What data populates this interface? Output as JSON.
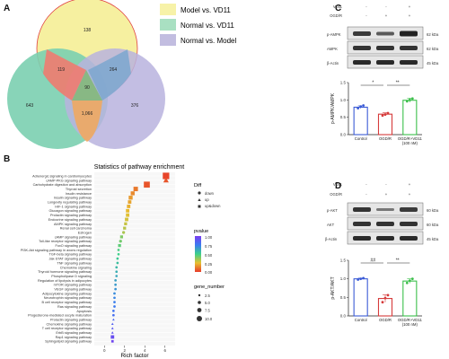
{
  "panels": {
    "a": "A",
    "b": "B",
    "c": "C",
    "d": "D"
  },
  "venn": {
    "legend": [
      {
        "label": "Model vs. VD11",
        "color": "#f7f2a8"
      },
      {
        "label": "Normal vs. VD11",
        "color": "#a9e0c2"
      },
      {
        "label": "Normal vs. Model",
        "color": "#c2bde0"
      }
    ],
    "colors": {
      "model_vd11": "#f6f0a0",
      "normal_vd11": "#7bcfb0",
      "normal_model": "#b8b3de",
      "overlap_ab": "#ef7b70",
      "overlap_ac": "#7fa7cf",
      "overlap_bc": "#f0a860",
      "center": "#88b884"
    },
    "counts": {
      "model_vd11_only": "138",
      "normal_vd11_only": "643",
      "normal_model_only": "376",
      "ab": "119",
      "ac": "264",
      "bc": "1,066",
      "abc": "90"
    }
  },
  "enrichment": {
    "title": "Statistics of pathway enrichment",
    "xlabel": "Rich factor",
    "x_ticks": [
      "0",
      "2",
      "4",
      "6"
    ],
    "pathways": [
      "Adrenergic signaling in cardiomyocytes",
      "cAMP-PKG signaling pathway",
      "Carbohydrate digestion and absorption",
      "Thyroid secretion",
      "Insulin resistance",
      "Insulin signaling pathway",
      "Longevity regulating pathway",
      "HIF-1 signaling pathway",
      "Glucagon signaling pathway",
      "Prolactin signaling pathway",
      "Endocrine signaling pathway",
      "AMPK signaling pathway",
      "Renal cell carcinoma",
      "Estrogen",
      "cAMP signaling pathway",
      "Toll-like receptor signaling pathway",
      "FoxO signaling pathway",
      "PI3K-Akt signaling pathway in axons regulation",
      "TGF-beta signaling pathway",
      "Jak-STAT signaling pathway",
      "TNF signaling pathway",
      "Chemokine signaling",
      "Thyroid hormone signaling pathway",
      "Phospholipase D signaling",
      "Regulation of lipolysis in adipocytes",
      "mTOR signaling pathway",
      "VEGF signaling pathway",
      "Adipocytokine signaling pathway",
      "Neurotrophin signaling pathway",
      "B cell receptor signaling pathway",
      "Ras signaling pathway",
      "Apoptosis",
      "Progesterone-mediated oocyte maturation",
      "Prolactin signaling pathway",
      "Chemokine signaling pathway",
      "T cell receptor signaling pathway",
      "ErbB signaling pathway",
      "Rap1 signaling pathway",
      "Sphingolipid signaling pathway"
    ],
    "legend_diff_title": "Diff",
    "legend_diff": [
      "down",
      "up",
      "up&down"
    ],
    "legend_pvalue_title": "pvalue",
    "pvalue_ticks": [
      "1.00",
      "0.75",
      "0.50",
      "0.25",
      "0.00"
    ],
    "legend_gene_title": "gene_number",
    "gene_ticks": [
      "2.5",
      "5.0",
      "7.5",
      "10.0"
    ]
  },
  "chart_data": [
    {
      "type": "scatter",
      "title": "Statistics of pathway enrichment",
      "xlabel": "Rich factor",
      "ylabel": "",
      "xlim": [
        -1,
        7
      ],
      "x": [
        6.1,
        6.1,
        4.2,
        3.1,
        2.8,
        2.6,
        2.5,
        2.4,
        2.3,
        2.3,
        2.2,
        2.1,
        2.0,
        1.9,
        1.7,
        1.6,
        1.5,
        1.4,
        1.4,
        1.3,
        1.3,
        1.2,
        1.2,
        1.2,
        1.1,
        1.1,
        1.1,
        1.0,
        1.0,
        1.0,
        1.0,
        0.9,
        0.9,
        0.9,
        0.8,
        0.8,
        0.8,
        0.8,
        0.8
      ],
      "pvalue": [
        0.02,
        0.05,
        0.05,
        0.12,
        0.15,
        0.18,
        0.2,
        0.22,
        0.24,
        0.26,
        0.28,
        0.3,
        0.32,
        0.34,
        0.4,
        0.42,
        0.45,
        0.48,
        0.5,
        0.52,
        0.55,
        0.57,
        0.6,
        0.62,
        0.64,
        0.66,
        0.68,
        0.7,
        0.72,
        0.74,
        0.76,
        0.78,
        0.8,
        0.82,
        0.85,
        0.88,
        0.9,
        0.93,
        0.96
      ],
      "gene_number": [
        10,
        8,
        9,
        6,
        5,
        5,
        4,
        4,
        4,
        4,
        4,
        3,
        3,
        3,
        3,
        3,
        3,
        2,
        2,
        2,
        2,
        2,
        2,
        2,
        2,
        2,
        2,
        2,
        2,
        2,
        2,
        2,
        2,
        2,
        2,
        2,
        2,
        4,
        2
      ],
      "diff_shape": [
        "square",
        "triangle",
        "square",
        "square",
        "square",
        "square",
        "square",
        "square",
        "square",
        "square",
        "square",
        "square",
        "square",
        "circle",
        "square",
        "circle",
        "square",
        "circle",
        "circle",
        "circle",
        "circle",
        "circle",
        "circle",
        "circle",
        "circle",
        "circle",
        "circle",
        "circle",
        "circle",
        "circle",
        "circle",
        "circle",
        "circle",
        "triangle",
        "triangle",
        "triangle",
        "triangle",
        "square",
        "square"
      ]
    },
    {
      "type": "bar",
      "panel": "C",
      "categories": [
        "Control",
        "OGD/R",
        "OGD/R+VD11 (100 nM)"
      ],
      "values": [
        0.79,
        0.59,
        0.99
      ],
      "errors": [
        0.04,
        0.04,
        0.06
      ],
      "ylabel": "p-AMPK/AMPK",
      "ylim": [
        0,
        1.5
      ],
      "y_ticks": [
        "0.0",
        "0.5",
        "1.0",
        "1.5"
      ],
      "points": [
        [
          0.76,
          0.81,
          0.84
        ],
        [
          0.55,
          0.58,
          0.62
        ],
        [
          0.96,
          1.0,
          1.04
        ]
      ],
      "colors": [
        "#3b5bd6",
        "#d63b3b",
        "#3bbf4a"
      ],
      "sig": [
        "*",
        "**"
      ]
    },
    {
      "type": "bar",
      "panel": "D",
      "categories": [
        "Control",
        "OGD/R",
        "OGD/R+VD11 (100 nM)"
      ],
      "values": [
        1.0,
        0.47,
        0.94
      ],
      "errors": [
        0.02,
        0.1,
        0.06
      ],
      "ylabel": "p-AKT/AKT",
      "ylim": [
        0,
        1.5
      ],
      "y_ticks": [
        "0.0",
        "0.5",
        "1.0",
        "1.5"
      ],
      "points": [
        [
          0.98,
          1.0,
          1.02
        ],
        [
          0.37,
          0.48,
          0.56
        ],
        [
          0.89,
          0.95,
          1.0
        ]
      ],
      "colors": [
        "#3b5bd6",
        "#d63b3b",
        "#3bbf4a"
      ],
      "sig": [
        "##",
        "**"
      ]
    }
  ],
  "blot_c": {
    "conditions": [
      {
        "label": "VD11",
        "marks": [
          "-",
          "-",
          "+"
        ]
      },
      {
        "label": "OGD/R",
        "marks": [
          "-",
          "+",
          "+"
        ]
      }
    ],
    "rows": [
      {
        "label": "p-AMPK",
        "size": "62 kDa"
      },
      {
        "label": "AMPK",
        "size": "62 kDa"
      },
      {
        "label": "β-Actin",
        "size": "45 kDa"
      }
    ]
  },
  "blot_d": {
    "conditions": [
      {
        "label": "VD11",
        "marks": [
          "-",
          "-",
          "+"
        ]
      },
      {
        "label": "OGD/R",
        "marks": [
          "-",
          "+",
          "+"
        ]
      }
    ],
    "rows": [
      {
        "label": "p-AKT",
        "size": "60 kDa"
      },
      {
        "label": "AKT",
        "size": "60 kDa"
      },
      {
        "label": "β-Actin",
        "size": "45 kDa"
      }
    ]
  }
}
